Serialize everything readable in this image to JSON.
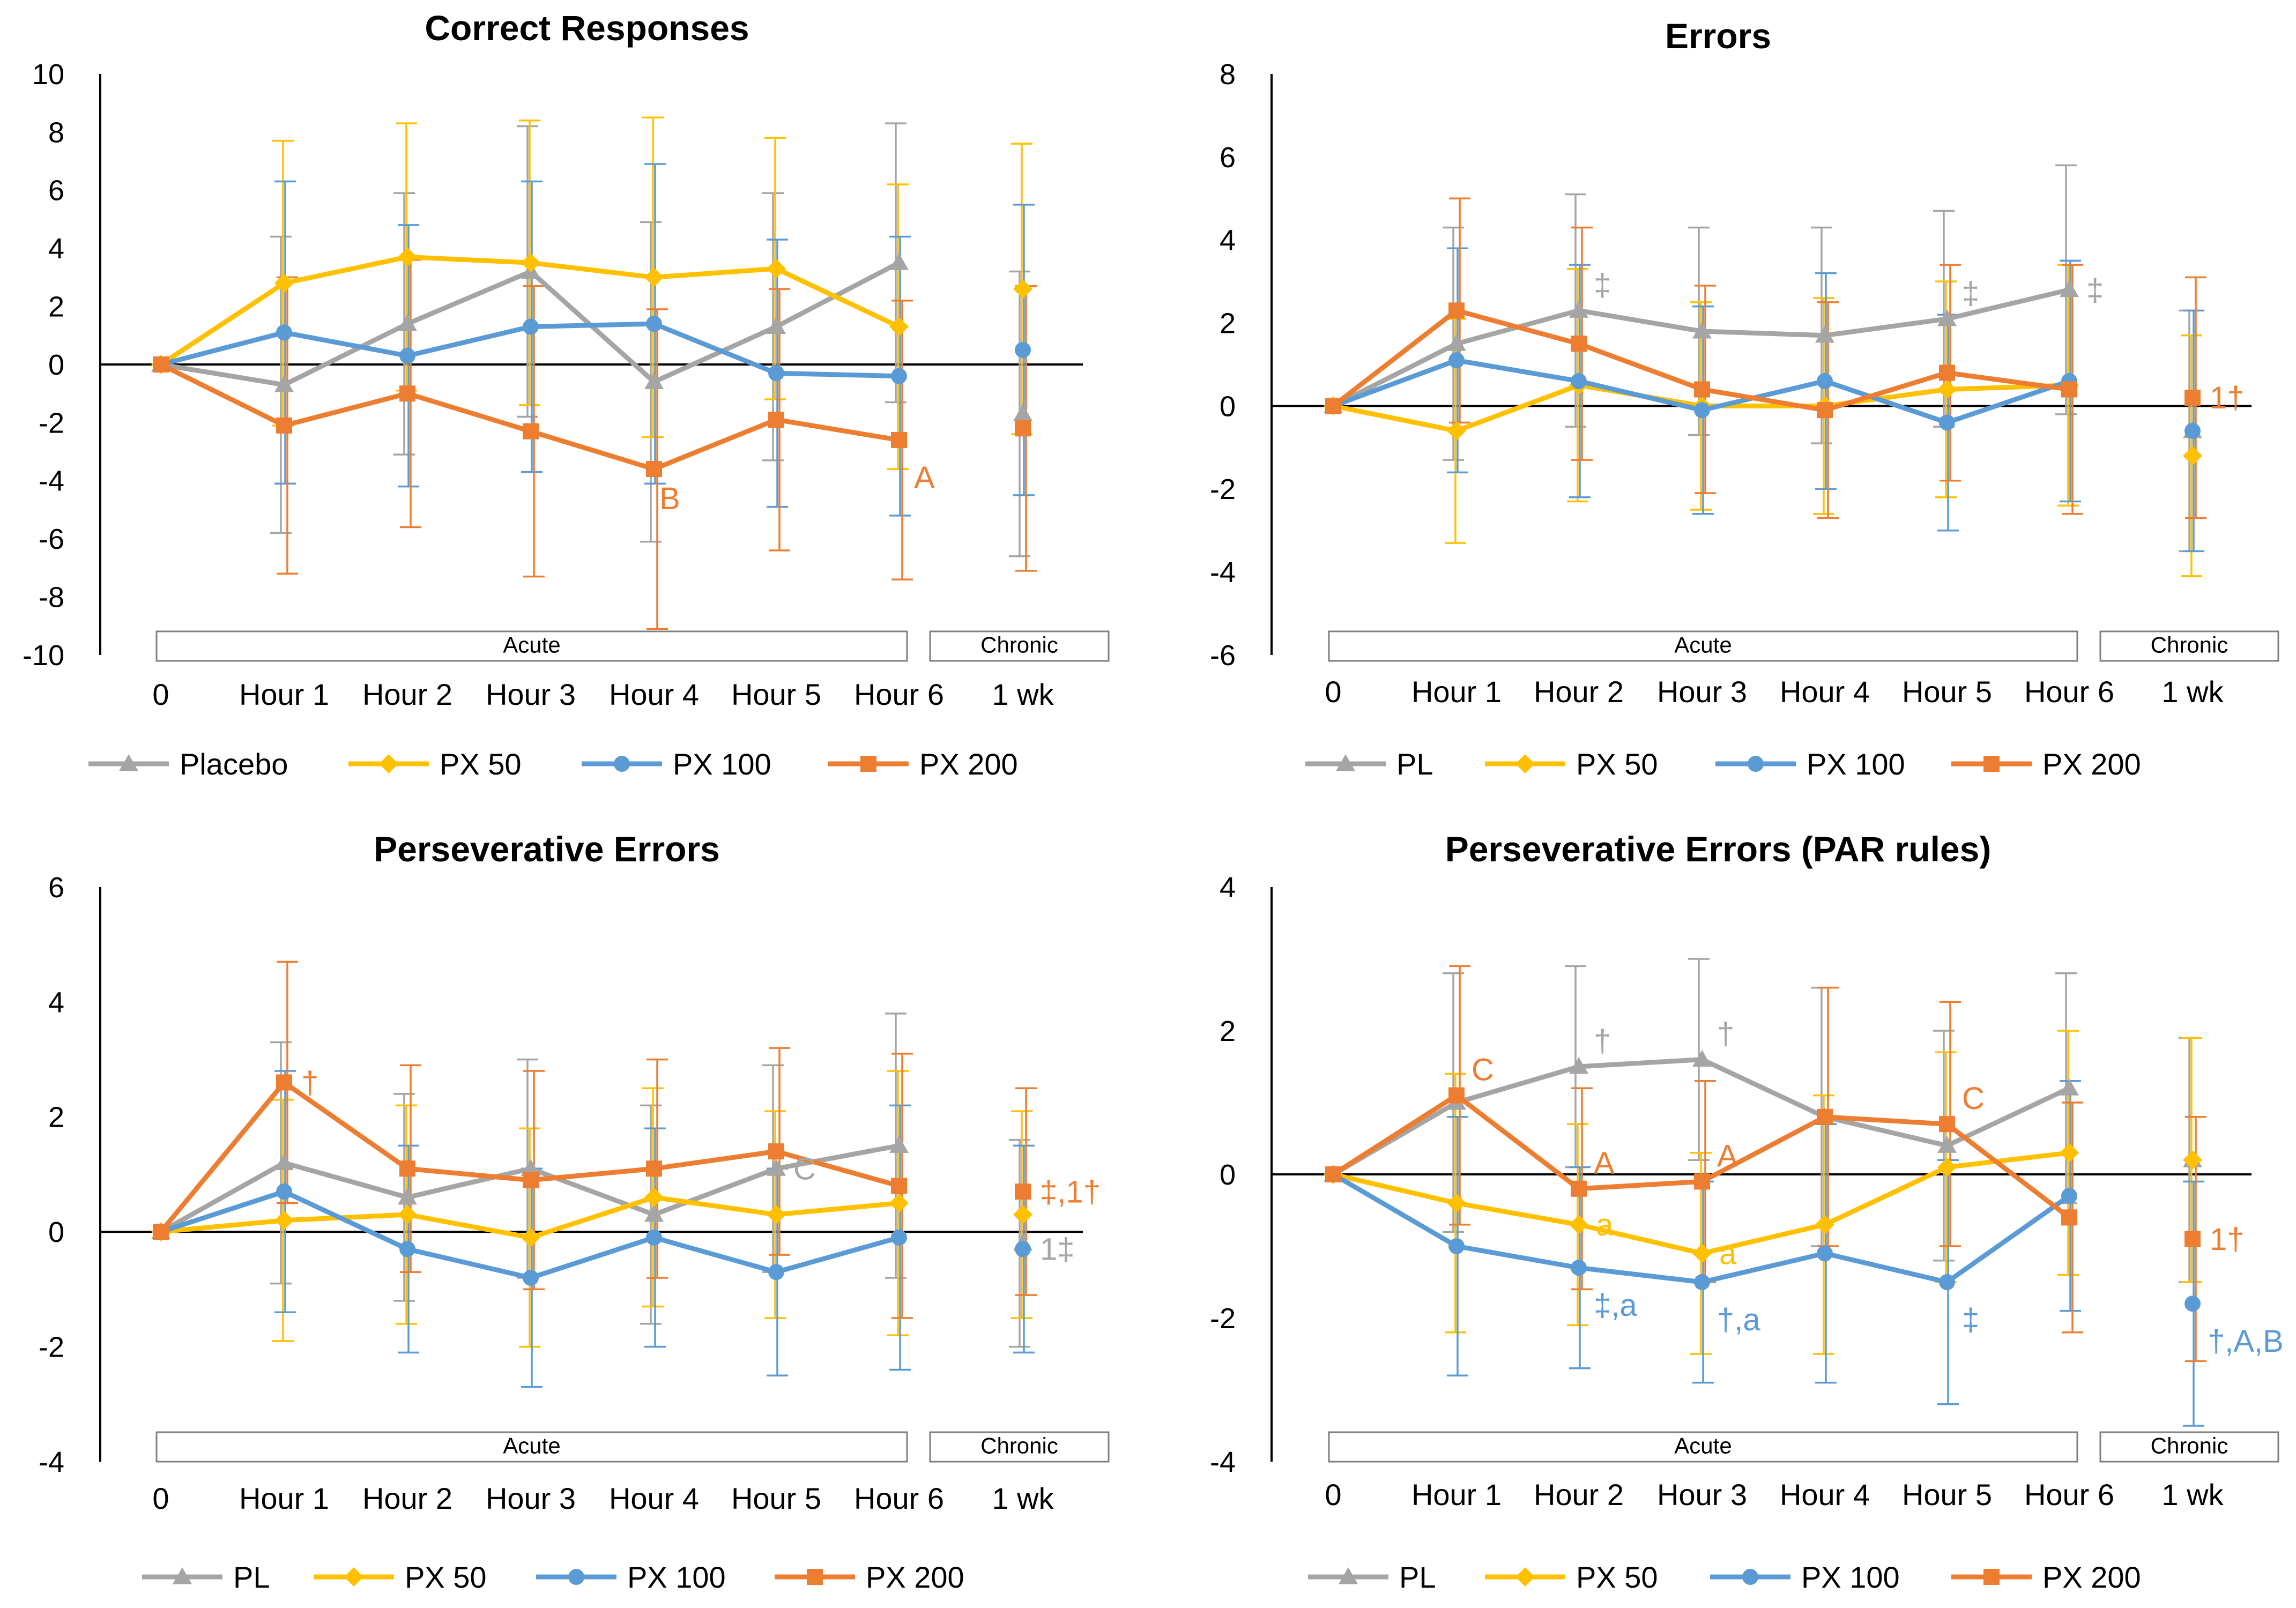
{
  "figure": {
    "colors": {
      "Placebo": "#a5a5a5",
      "PL": "#a5a5a5",
      "PX 50": "#ffc000",
      "PX 100": "#5b9bd5",
      "PX 200": "#ed7d31",
      "axis": "#000000",
      "box_border": "#7f7f7f"
    },
    "group_labels": {
      "acute": "Acute",
      "chronic": "Chronic"
    }
  },
  "chart_data": [
    {
      "type": "line",
      "title": "Correct Responses",
      "categories": [
        "0",
        "Hour 1",
        "Hour 2",
        "Hour 3",
        "Hour 4",
        "Hour 5",
        "Hour 6",
        "1 wk"
      ],
      "ylim": [
        -10,
        10
      ],
      "ytick_step": 2,
      "yticks": [
        "10",
        "8",
        "6",
        "4",
        "2",
        "0",
        "-2",
        "-4",
        "-6",
        "-8",
        "-10"
      ],
      "series": [
        {
          "name": "Placebo",
          "color_key": "Placebo",
          "marker": "triangle",
          "values": [
            0,
            -0.7,
            1.4,
            3.2,
            -0.6,
            1.3,
            3.5,
            -1.7
          ],
          "err": [
            0,
            5.1,
            4.5,
            5,
            5.5,
            4.6,
            4.8,
            4.9
          ]
        },
        {
          "name": "PX 50",
          "color_key": "PX 50",
          "marker": "diamond",
          "values": [
            0,
            2.8,
            3.7,
            3.5,
            3.0,
            3.3,
            1.3,
            2.6
          ],
          "err": [
            0,
            4.9,
            4.6,
            4.9,
            5.5,
            4.5,
            4.9,
            5
          ]
        },
        {
          "name": "PX 100",
          "color_key": "PX 100",
          "marker": "circle",
          "values": [
            0,
            1.1,
            0.3,
            1.3,
            1.4,
            -0.3,
            -0.4,
            0.5
          ],
          "err": [
            0,
            5.2,
            4.5,
            5,
            5.5,
            4.6,
            4.8,
            5.0
          ]
        },
        {
          "name": "PX 200",
          "color_key": "PX 200",
          "marker": "square",
          "values": [
            0,
            -2.1,
            -1.0,
            -2.3,
            -3.6,
            -1.9,
            -2.6,
            -2.2
          ],
          "err": [
            0,
            5.1,
            4.6,
            5,
            5.5,
            4.5,
            4.8,
            4.9
          ]
        }
      ],
      "annotations": [
        {
          "text": "B",
          "series": "PX 200",
          "category": "Hour 4",
          "color_key": "PX 200",
          "place": "below"
        },
        {
          "text": "A",
          "series": "PX 200",
          "category": "Hour 6",
          "color_key": "PX 200",
          "place": "below-right"
        }
      ]
    },
    {
      "type": "line",
      "title": "Errors",
      "categories": [
        "0",
        "Hour 1",
        "Hour 2",
        "Hour 3",
        "Hour 4",
        "Hour 5",
        "Hour 6",
        "1 wk"
      ],
      "ylim": [
        -6,
        8
      ],
      "ytick_step": 2,
      "yticks": [
        "8",
        "6",
        "4",
        "2",
        "0",
        "-2",
        "-4",
        "-6"
      ],
      "series": [
        {
          "name": "PL",
          "color_key": "PL",
          "marker": "triangle",
          "values": [
            0,
            1.5,
            2.3,
            1.8,
            1.7,
            2.1,
            2.8,
            -0.6
          ],
          "err": [
            0,
            2.8,
            2.8,
            2.5,
            2.6,
            2.6,
            3.0,
            2.9
          ]
        },
        {
          "name": "PX 50",
          "color_key": "PX 50",
          "marker": "diamond",
          "values": [
            0,
            -0.6,
            0.5,
            0.0,
            0.0,
            0.4,
            0.5,
            -1.2
          ],
          "err": [
            0,
            2.7,
            2.8,
            2.5,
            2.6,
            2.6,
            2.9,
            2.9
          ]
        },
        {
          "name": "PX 100",
          "color_key": "PX 100",
          "marker": "circle",
          "values": [
            0,
            1.1,
            0.6,
            -0.1,
            0.6,
            -0.4,
            0.6,
            -0.6
          ],
          "err": [
            0,
            2.7,
            2.8,
            2.5,
            2.6,
            2.6,
            2.9,
            2.9
          ]
        },
        {
          "name": "PX 200",
          "color_key": "PX 200",
          "marker": "square",
          "values": [
            0,
            2.3,
            1.5,
            0.4,
            -0.1,
            0.8,
            0.4,
            0.2
          ],
          "err": [
            0,
            2.7,
            2.8,
            2.5,
            2.6,
            2.6,
            3.0,
            2.9
          ]
        }
      ],
      "annotations": [
        {
          "text": "‡",
          "series": "PL",
          "category": "Hour 2",
          "color_key": "PL",
          "place": "above-right"
        },
        {
          "text": "‡",
          "series": "PL",
          "category": "Hour 5",
          "color_key": "PL",
          "place": "above-right"
        },
        {
          "text": "‡",
          "series": "PL",
          "category": "Hour 6",
          "color_key": "PL",
          "place": "right"
        },
        {
          "text": "1†",
          "series": "PX 200",
          "category": "1 wk",
          "color_key": "PX 200",
          "place": "right"
        }
      ]
    },
    {
      "type": "line",
      "title": "Perseverative Errors",
      "categories": [
        "0",
        "Hour 1",
        "Hour 2",
        "Hour 3",
        "Hour 4",
        "Hour 5",
        "Hour 6",
        "1 wk"
      ],
      "ylim": [
        -4,
        6
      ],
      "ytick_step": 2,
      "yticks": [
        "6",
        "4",
        "2",
        "0",
        "-2",
        "-4"
      ],
      "series": [
        {
          "name": "PL",
          "color_key": "PL",
          "marker": "triangle",
          "values": [
            0,
            1.2,
            0.6,
            1.1,
            0.3,
            1.1,
            1.5,
            -0.2
          ],
          "err": [
            0,
            2.1,
            1.8,
            1.9,
            1.9,
            1.8,
            2.3,
            1.8
          ]
        },
        {
          "name": "PX 50",
          "color_key": "PX 50",
          "marker": "diamond",
          "values": [
            0,
            0.2,
            0.3,
            -0.1,
            0.6,
            0.3,
            0.5,
            0.3
          ],
          "err": [
            0,
            2.1,
            1.9,
            1.9,
            1.9,
            1.8,
            2.3,
            1.8
          ]
        },
        {
          "name": "PX 100",
          "color_key": "PX 100",
          "marker": "circle",
          "values": [
            0,
            0.7,
            -0.3,
            -0.8,
            -0.1,
            -0.7,
            -0.1,
            -0.3
          ],
          "err": [
            0,
            2.1,
            1.8,
            1.9,
            1.9,
            1.8,
            2.3,
            1.8
          ]
        },
        {
          "name": "PX 200",
          "color_key": "PX 200",
          "marker": "square",
          "values": [
            0,
            2.6,
            1.1,
            0.9,
            1.1,
            1.4,
            0.8,
            0.7
          ],
          "err": [
            0,
            2.1,
            1.8,
            1.9,
            1.9,
            1.8,
            2.3,
            1.8
          ]
        }
      ],
      "annotations": [
        {
          "text": "†",
          "series": "PX 200",
          "category": "Hour 1",
          "color_key": "PX 200",
          "place": "right"
        },
        {
          "text": "C",
          "series": "PL",
          "category": "Hour 5",
          "color_key": "PL",
          "place": "right"
        },
        {
          "text": "‡,1†",
          "series": "PX 200",
          "category": "1 wk",
          "color_key": "PX 200",
          "place": "right"
        },
        {
          "text": "1‡",
          "series": "PX 100",
          "category": "1 wk",
          "color_key": "PL",
          "place": "right"
        }
      ]
    },
    {
      "type": "line",
      "title": "Perseverative Errors (PAR rules)",
      "categories": [
        "0",
        "Hour 1",
        "Hour 2",
        "Hour 3",
        "Hour 4",
        "Hour 5",
        "Hour 6",
        "1 wk"
      ],
      "ylim": [
        -4,
        4
      ],
      "ytick_step": 2,
      "yticks": [
        "4",
        "2",
        "0",
        "-2",
        "-4"
      ],
      "series": [
        {
          "name": "PL",
          "color_key": "PL",
          "marker": "triangle",
          "values": [
            0,
            1.0,
            1.5,
            1.6,
            0.8,
            0.4,
            1.2,
            0.2
          ],
          "err": [
            0,
            1.8,
            1.4,
            1.4,
            1.8,
            1.6,
            1.6,
            1.7
          ]
        },
        {
          "name": "PX 50",
          "color_key": "PX 50",
          "marker": "diamond",
          "values": [
            0,
            -0.4,
            -0.7,
            -1.1,
            -0.7,
            0.1,
            0.3,
            0.2
          ],
          "err": [
            0,
            1.8,
            1.4,
            1.4,
            1.8,
            1.6,
            1.7,
            1.7
          ]
        },
        {
          "name": "PX 100",
          "color_key": "PX 100",
          "marker": "circle",
          "values": [
            0,
            -1.0,
            -1.3,
            -1.5,
            -1.1,
            -1.5,
            -0.3,
            -1.8
          ],
          "err": [
            0,
            1.8,
            1.4,
            1.4,
            1.8,
            1.7,
            1.6,
            1.7
          ]
        },
        {
          "name": "PX 200",
          "color_key": "PX 200",
          "marker": "square",
          "values": [
            0,
            1.1,
            -0.2,
            -0.1,
            0.8,
            0.7,
            -0.6,
            -0.9
          ],
          "err": [
            0,
            1.8,
            1.4,
            1.4,
            1.8,
            1.7,
            1.6,
            1.7
          ]
        }
      ],
      "annotations": [
        {
          "text": "C",
          "series": "PX 200",
          "category": "Hour 1",
          "color_key": "PX 200",
          "place": "above-right"
        },
        {
          "text": "†",
          "series": "PL",
          "category": "Hour 2",
          "color_key": "PL",
          "place": "above-right"
        },
        {
          "text": "†",
          "series": "PL",
          "category": "Hour 3",
          "color_key": "PL",
          "place": "above-right"
        },
        {
          "text": "A",
          "series": "PX 200",
          "category": "Hour 2",
          "color_key": "PX 200",
          "place": "above-right"
        },
        {
          "text": "A",
          "series": "PX 200",
          "category": "Hour 3",
          "color_key": "PX 200",
          "place": "above-right"
        },
        {
          "text": "C",
          "series": "PX 200",
          "category": "Hour 5",
          "color_key": "PX 200",
          "place": "above-right"
        },
        {
          "text": "a",
          "series": "PX 50",
          "category": "Hour 2",
          "color_key": "PX 50",
          "place": "right"
        },
        {
          "text": "a",
          "series": "PX 50",
          "category": "Hour 3",
          "color_key": "PX 50",
          "place": "right"
        },
        {
          "text": "‡,a",
          "series": "PX 100",
          "category": "Hour 2",
          "color_key": "PX 100",
          "place": "below-right"
        },
        {
          "text": "†,a",
          "series": "PX 100",
          "category": "Hour 3",
          "color_key": "PX 100",
          "place": "below-right"
        },
        {
          "text": "‡",
          "series": "PX 100",
          "category": "Hour 5",
          "color_key": "PX 100",
          "place": "below-right"
        },
        {
          "text": "1†",
          "series": "PX 200",
          "category": "1 wk",
          "color_key": "PX 200",
          "place": "right"
        },
        {
          "text": "†,A,B",
          "series": "PX 100",
          "category": "1 wk",
          "color_key": "PX 100",
          "place": "below-right"
        }
      ]
    }
  ]
}
